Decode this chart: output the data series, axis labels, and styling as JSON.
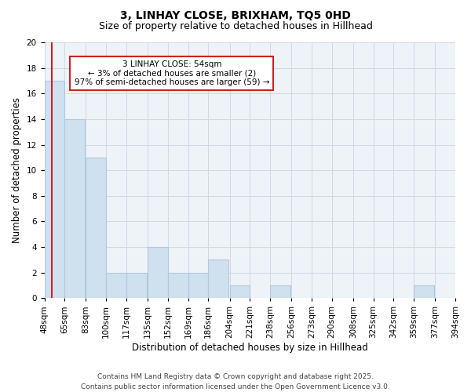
{
  "title1": "3, LINHAY CLOSE, BRIXHAM, TQ5 0HD",
  "title2": "Size of property relative to detached houses in Hillhead",
  "xlabel": "Distribution of detached houses by size in Hillhead",
  "ylabel": "Number of detached properties",
  "bins": [
    48,
    65,
    83,
    100,
    117,
    135,
    152,
    169,
    186,
    204,
    221,
    238,
    256,
    273,
    290,
    308,
    325,
    342,
    359,
    377,
    394
  ],
  "bar_heights": [
    17,
    14,
    11,
    2,
    2,
    4,
    2,
    2,
    3,
    1,
    0,
    1,
    0,
    0,
    0,
    0,
    0,
    0,
    1,
    0
  ],
  "bar_color": "#cfe0ef",
  "bar_edge_color": "#b0c8de",
  "red_line_x": 54,
  "annotation_text": "3 LINHAY CLOSE: 54sqm\n← 3% of detached houses are smaller (2)\n97% of semi-detached houses are larger (59) →",
  "annotation_box_facecolor": "#ffffff",
  "annotation_box_edgecolor": "#cc2222",
  "red_line_color": "#cc2222",
  "ylim": [
    0,
    20
  ],
  "yticks": [
    0,
    2,
    4,
    6,
    8,
    10,
    12,
    14,
    16,
    18,
    20
  ],
  "footer_text": "Contains HM Land Registry data © Crown copyright and database right 2025.\nContains public sector information licensed under the Open Government Licence v3.0.",
  "title1_fontsize": 10,
  "title2_fontsize": 9,
  "xlabel_fontsize": 8.5,
  "ylabel_fontsize": 8.5,
  "tick_fontsize": 7.5,
  "annotation_fontsize": 7.5,
  "footer_fontsize": 6.5,
  "grid_color": "#d0d8e8",
  "background_color": "#eef3f8"
}
